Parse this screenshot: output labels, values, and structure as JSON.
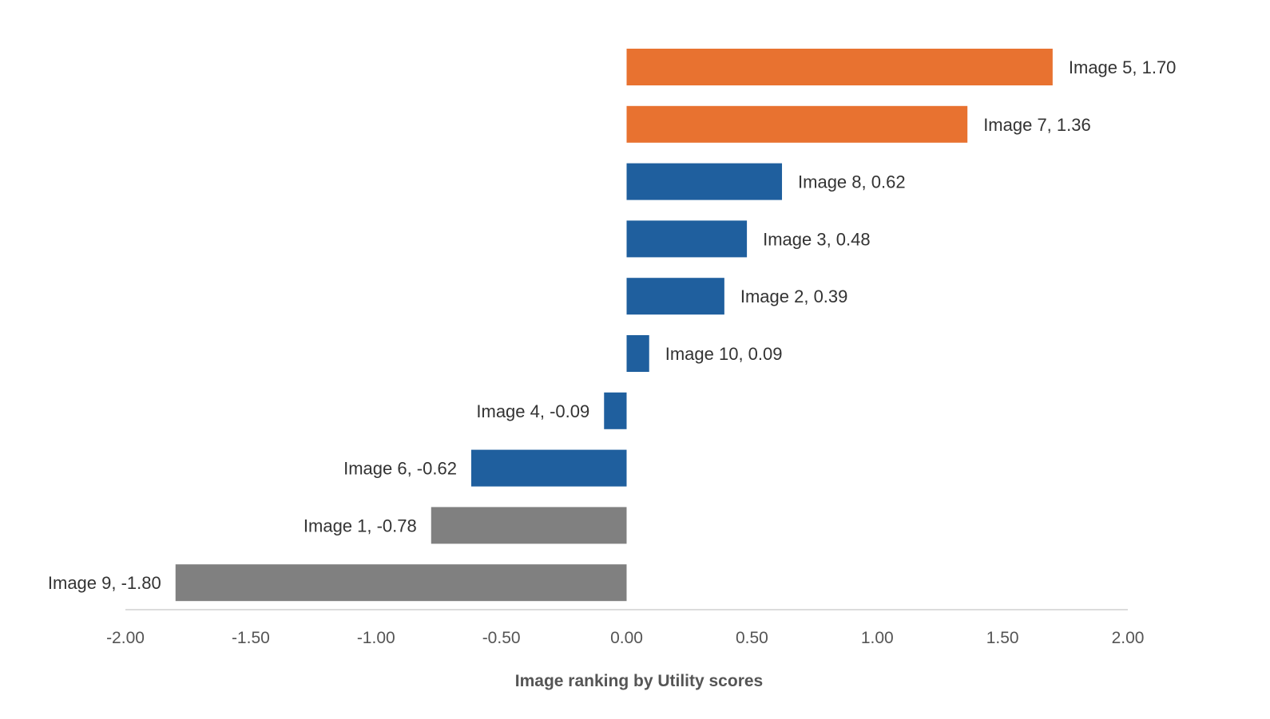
{
  "chart_data": {
    "type": "bar",
    "orientation": "horizontal",
    "xlabel": "Image ranking by Utility scores",
    "xlim": [
      -2.0,
      2.0
    ],
    "x_ticks": [
      "-2.00",
      "-1.50",
      "-1.00",
      "-0.50",
      "0.00",
      "0.50",
      "1.00",
      "1.50",
      "2.00"
    ],
    "x_tick_values": [
      -2.0,
      -1.5,
      -1.0,
      -0.5,
      0.0,
      0.5,
      1.0,
      1.5,
      2.0
    ],
    "grid": false,
    "colors": {
      "top": "#E87230",
      "middle": "#1F5F9E",
      "bottom": "#808080"
    },
    "bars": [
      {
        "category": "Image 5",
        "value": 1.7,
        "label": "Image 5, 1.70",
        "group": "top"
      },
      {
        "category": "Image 7",
        "value": 1.36,
        "label": "Image 7, 1.36",
        "group": "top"
      },
      {
        "category": "Image 8",
        "value": 0.62,
        "label": "Image 8, 0.62",
        "group": "middle"
      },
      {
        "category": "Image 3",
        "value": 0.48,
        "label": "Image 3, 0.48",
        "group": "middle"
      },
      {
        "category": "Image 2",
        "value": 0.39,
        "label": "Image 2, 0.39",
        "group": "middle"
      },
      {
        "category": "Image 10",
        "value": 0.09,
        "label": "Image 10, 0.09",
        "group": "middle"
      },
      {
        "category": "Image 4",
        "value": -0.09,
        "label": "Image 4, -0.09",
        "group": "middle"
      },
      {
        "category": "Image 6",
        "value": -0.62,
        "label": "Image 6, -0.62",
        "group": "middle"
      },
      {
        "category": "Image 1",
        "value": -0.78,
        "label": "Image 1, -0.78",
        "group": "bottom"
      },
      {
        "category": "Image 9",
        "value": -1.8,
        "label": "Image 9, -1.80",
        "group": "bottom"
      }
    ]
  }
}
